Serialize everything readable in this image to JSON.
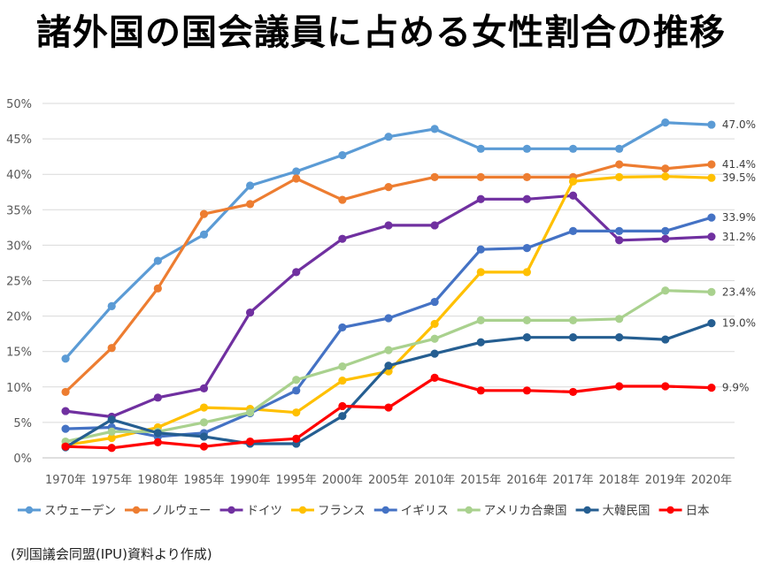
{
  "chart_data": {
    "type": "line",
    "title": "諸外国の国会議員に占める女性割合の推移",
    "source_note": "(列国議会同盟(IPU)資料より作成)",
    "xlabel": "",
    "ylabel": "",
    "ylim": [
      0,
      50
    ],
    "y_ticks": [
      "0%",
      "5%",
      "10%",
      "15%",
      "20%",
      "25%",
      "30%",
      "35%",
      "40%",
      "45%",
      "50%"
    ],
    "y_tick_values": [
      0,
      5,
      10,
      15,
      20,
      25,
      30,
      35,
      40,
      45,
      50
    ],
    "grid": true,
    "legend_position": "bottom",
    "categories": [
      "1970年",
      "1975年",
      "1980年",
      "1985年",
      "1990年",
      "1995年",
      "2000年",
      "2005年",
      "2010年",
      "2015年",
      "2016年",
      "2017年",
      "2018年",
      "2019年",
      "2020年"
    ],
    "series": [
      {
        "name": "スウェーデン",
        "color": "#5B9BD5",
        "values": [
          14.0,
          21.4,
          27.8,
          31.5,
          38.4,
          40.4,
          42.7,
          45.3,
          46.4,
          43.6,
          43.6,
          43.6,
          43.6,
          47.3,
          47.0
        ],
        "end_label": "47.0%"
      },
      {
        "name": "ノルウェー",
        "color": "#ED7D31",
        "values": [
          9.3,
          15.5,
          23.9,
          34.4,
          35.8,
          39.4,
          36.4,
          38.2,
          39.6,
          39.6,
          39.6,
          39.6,
          41.4,
          40.8,
          41.4
        ],
        "end_label": "41.4%"
      },
      {
        "name": "ドイツ",
        "color": "#7030A0",
        "values": [
          6.6,
          5.8,
          8.5,
          9.8,
          20.5,
          26.2,
          30.9,
          32.8,
          32.8,
          36.5,
          36.5,
          37.0,
          30.7,
          30.9,
          31.2
        ],
        "end_label": "31.2%"
      },
      {
        "name": "フランス",
        "color": "#FFC000",
        "values": [
          1.8,
          2.8,
          4.3,
          7.1,
          6.9,
          6.4,
          10.9,
          12.2,
          18.9,
          26.2,
          26.2,
          39.0,
          39.6,
          39.7,
          39.5
        ],
        "end_label": "39.5%"
      },
      {
        "name": "イギリス",
        "color": "#4472C4",
        "values": [
          4.1,
          4.3,
          3.0,
          3.5,
          6.3,
          9.5,
          18.4,
          19.7,
          22.0,
          29.4,
          29.6,
          32.0,
          32.0,
          32.0,
          33.9
        ],
        "end_label": "33.9%"
      },
      {
        "name": "アメリカ合衆国",
        "color": "#A9D18E",
        "values": [
          2.3,
          3.7,
          3.7,
          5.0,
          6.4,
          11.0,
          12.9,
          15.2,
          16.8,
          19.4,
          19.4,
          19.4,
          19.6,
          23.6,
          23.4
        ],
        "end_label": "23.4%"
      },
      {
        "name": "大韓民国",
        "color": "#255E91",
        "values": [
          1.5,
          5.4,
          3.5,
          3.0,
          2.0,
          2.0,
          5.9,
          13.0,
          14.7,
          16.3,
          17.0,
          17.0,
          17.0,
          16.7,
          19.0
        ],
        "end_label": "19.0%"
      },
      {
        "name": "日本",
        "color": "#FF0000",
        "values": [
          1.6,
          1.4,
          2.2,
          1.6,
          2.3,
          2.7,
          7.3,
          7.1,
          11.3,
          9.5,
          9.5,
          9.3,
          10.1,
          10.1,
          9.9
        ],
        "end_label": "9.9%"
      }
    ]
  }
}
